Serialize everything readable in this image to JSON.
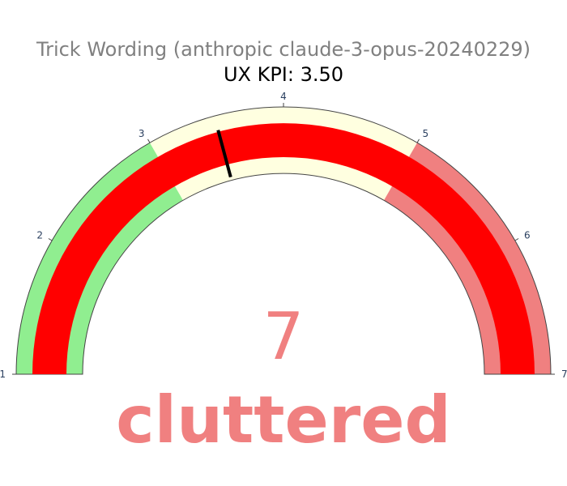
{
  "chart_data": {
    "type": "gauge",
    "title": "Trick Wording (anthropic claude-3-opus-20240229)",
    "subtitle": "UX KPI: 3.50",
    "value": 7,
    "value_label": "cluttered",
    "range": [
      1,
      7
    ],
    "ticks": [
      "1",
      "2",
      "3",
      "4",
      "5",
      "6",
      "7"
    ],
    "threshold": 3.5,
    "bands": [
      {
        "from": 1,
        "to": 3,
        "color": "#90ee90"
      },
      {
        "from": 3,
        "to": 5,
        "color": "#ffffe0"
      },
      {
        "from": 5,
        "to": 7,
        "color": "#f08080"
      }
    ],
    "bar_color": "#ff0000",
    "threshold_color": "#000000",
    "title_color": "#808080",
    "value_color": "#f08080",
    "tick_color": "#2a3f5f"
  }
}
